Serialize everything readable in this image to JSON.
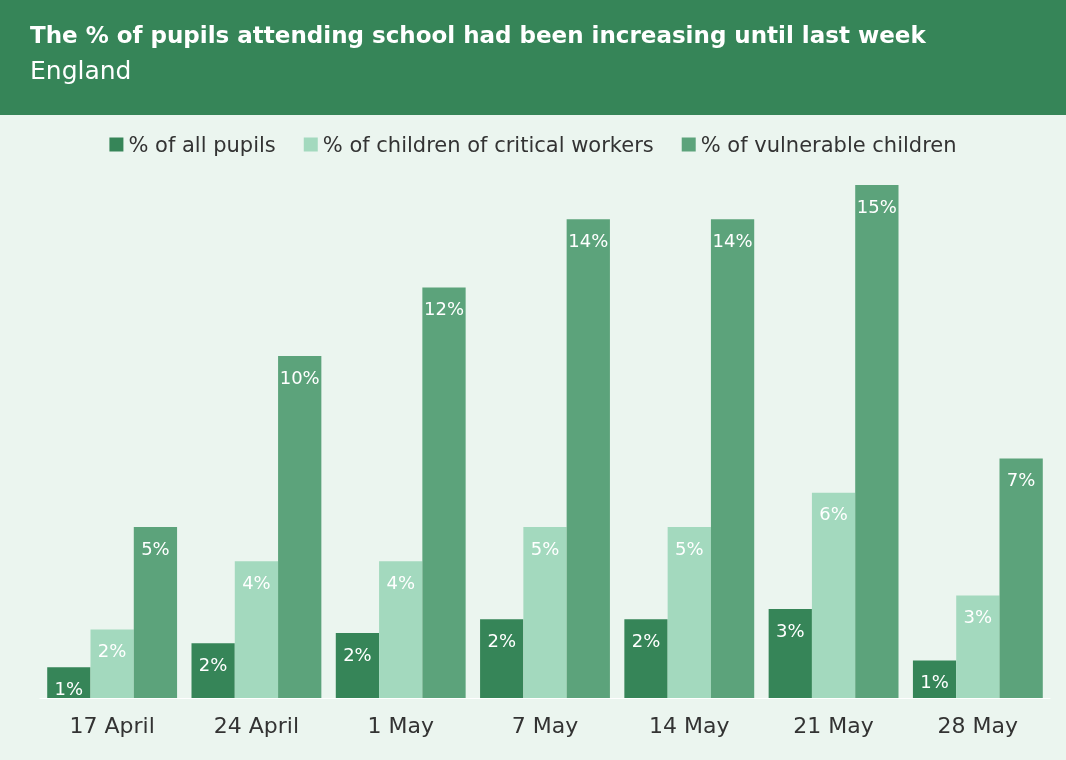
{
  "chart_data": {
    "type": "bar",
    "title": "The % of pupils attending school had been increasing until last week",
    "subtitle": "England",
    "categories": [
      "17 April",
      "24 April",
      "1 May",
      "7 May",
      "14 May",
      "21 May",
      "28 May"
    ],
    "series": [
      {
        "name": "% of all pupils",
        "color": "#368558",
        "values": [
          0.9,
          1.6,
          1.9,
          2.3,
          2.3,
          2.6,
          1.1
        ],
        "value_labels": [
          "1%",
          "2%",
          "2%",
          "2%",
          "2%",
          "3%",
          "1%"
        ]
      },
      {
        "name": "% of children of critical workers",
        "color": "#a3d9be",
        "values": [
          2.0,
          4.0,
          4.0,
          5.0,
          5.0,
          6.0,
          3.0
        ],
        "value_labels": [
          "2%",
          "4%",
          "4%",
          "5%",
          "5%",
          "6%",
          "3%"
        ]
      },
      {
        "name": "% of vulnerable children",
        "color": "#5ca37b",
        "values": [
          5.0,
          10.0,
          12.0,
          14.0,
          14.0,
          15.0,
          7.0
        ],
        "value_labels": [
          "5%",
          "10%",
          "12%",
          "14%",
          "14%",
          "15%",
          "7%"
        ]
      }
    ],
    "legend": "top"
  }
}
